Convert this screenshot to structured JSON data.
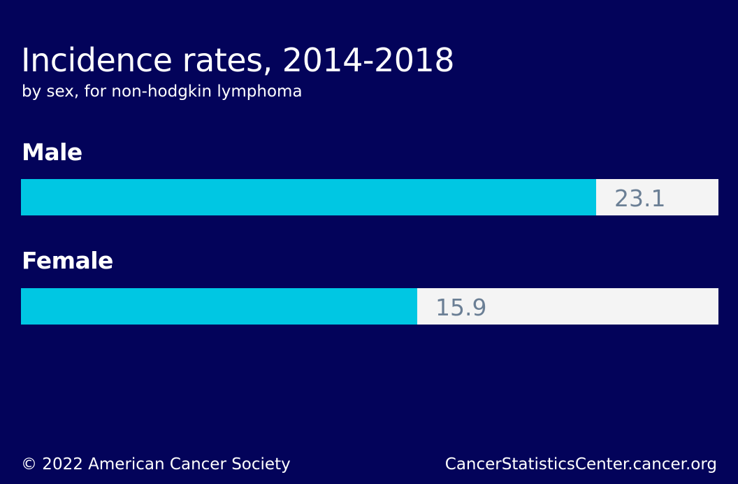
{
  "colors": {
    "background": "#03035a",
    "bar_fill": "#00c7e3",
    "bar_track": "#f4f4f4",
    "value_text": "#6b7f95"
  },
  "chart_data": {
    "type": "bar",
    "orientation": "horizontal",
    "title": "Incidence rates, 2014-2018",
    "subtitle": "by sex, for non-hodgkin lymphoma",
    "categories": [
      "Male",
      "Female"
    ],
    "values": [
      23.1,
      15.9
    ],
    "value_labels": [
      "23.1",
      "15.9"
    ],
    "xlim": [
      0,
      28
    ],
    "grid": false,
    "legend": "none"
  },
  "footer": {
    "copyright": "© 2022 American Cancer Society",
    "source": "CancerStatisticsCenter.cancer.org"
  }
}
